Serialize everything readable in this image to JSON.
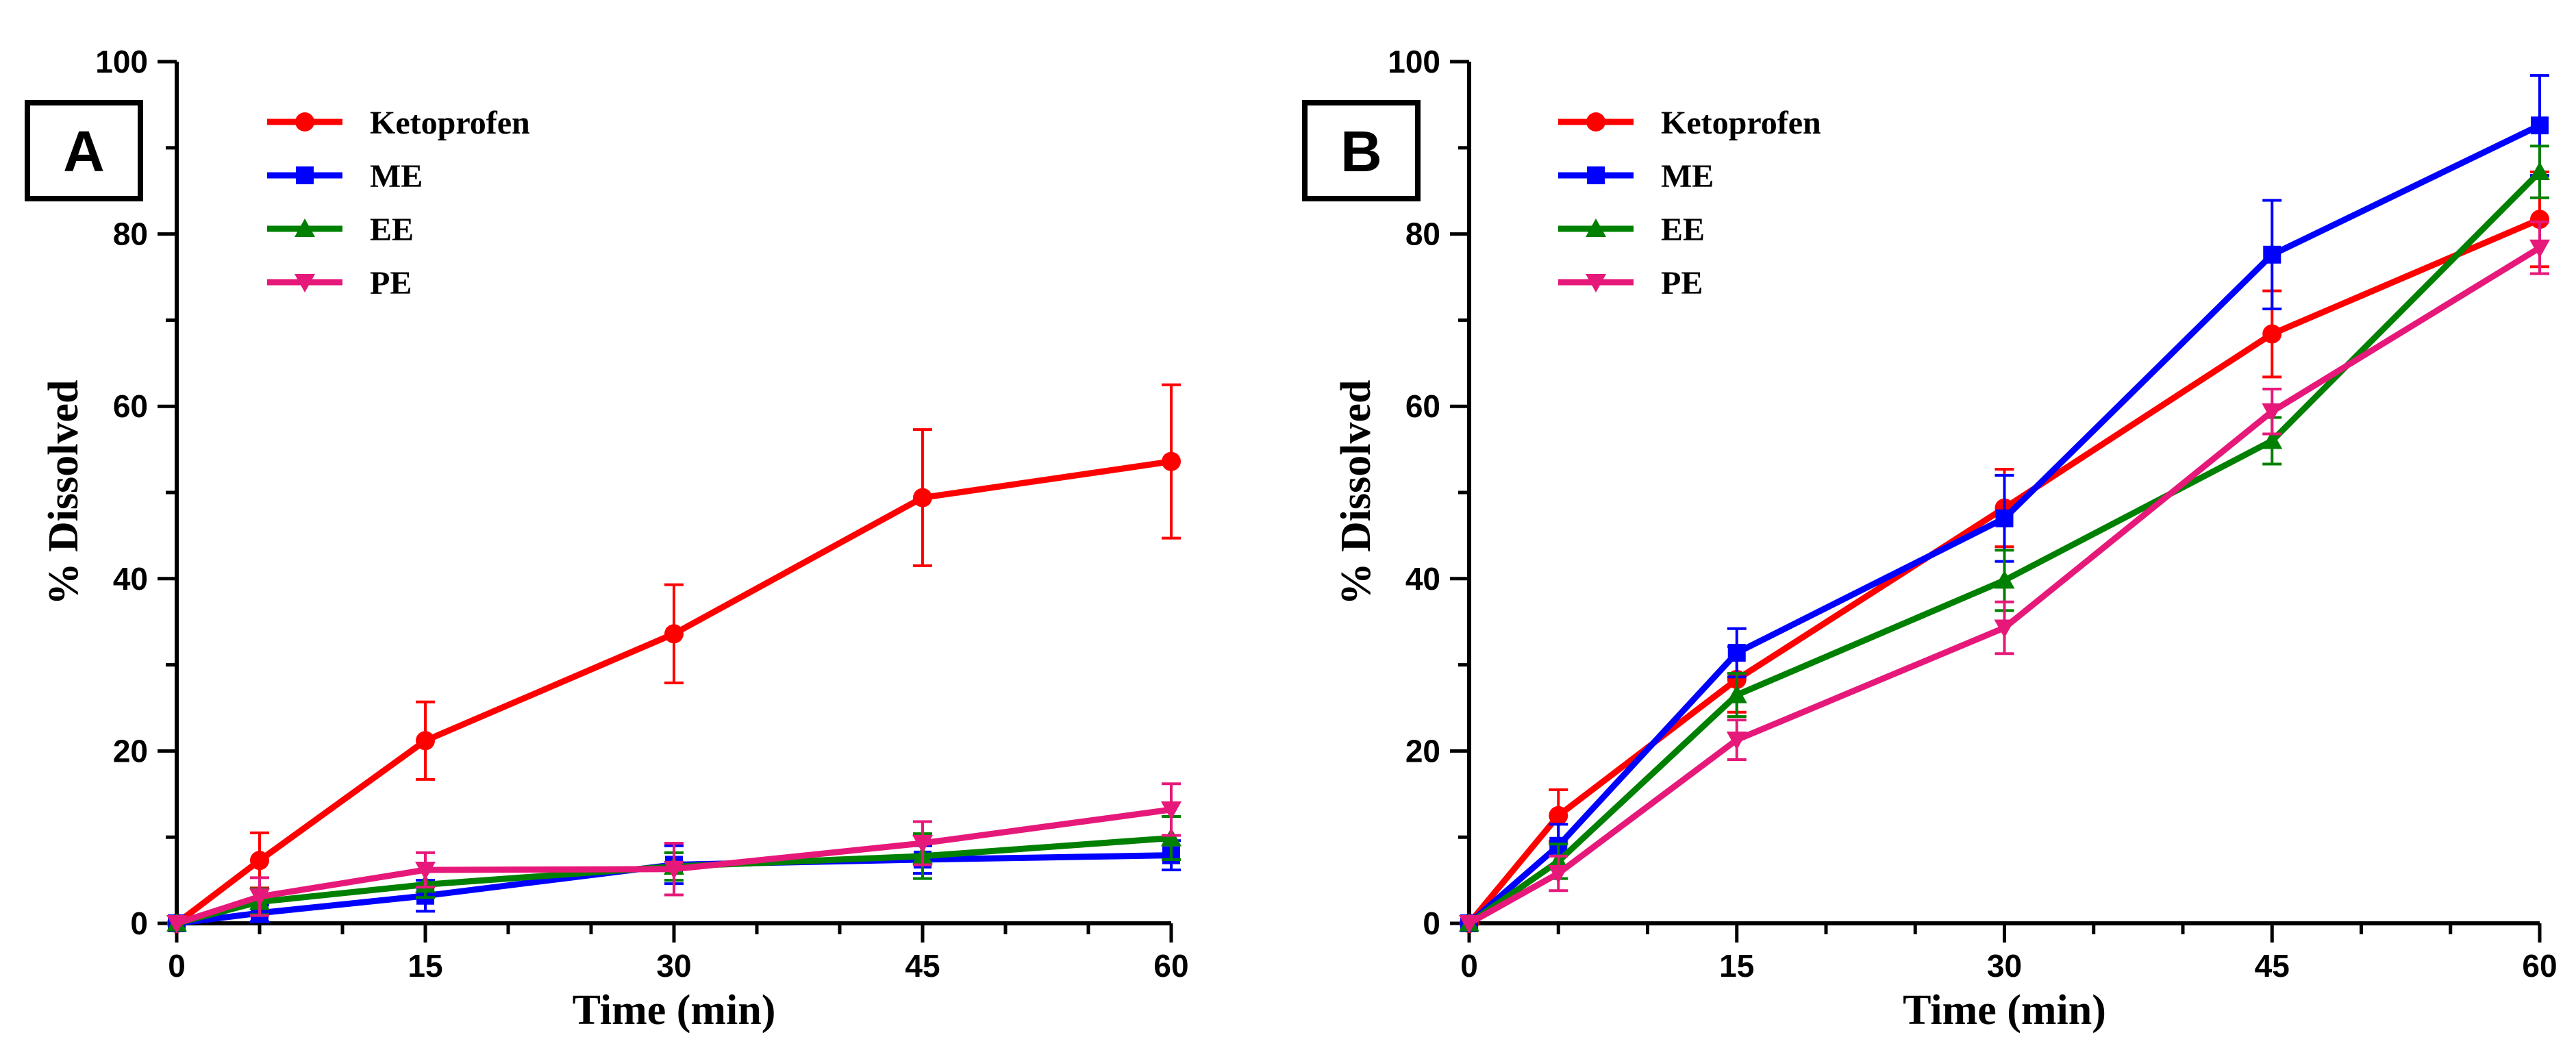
{
  "chart_data": [
    {
      "type": "line",
      "panel_label": "A",
      "xlabel": "Time (min)",
      "ylabel": "% Dissolved",
      "xlim": [
        0,
        60
      ],
      "ylim": [
        0,
        100
      ],
      "x_ticks": [
        0,
        15,
        30,
        45,
        60
      ],
      "y_ticks": [
        0,
        20,
        40,
        60,
        80,
        100
      ],
      "legend_position": "top-left",
      "grid": false,
      "x": [
        0,
        5,
        15,
        30,
        45,
        60
      ],
      "series": [
        {
          "name": "Ketoprofen",
          "color": "#ff0000",
          "marker": "circle",
          "values": [
            0,
            7.3,
            21.2,
            33.6,
            49.4,
            53.6
          ],
          "errors": [
            0,
            3.2,
            4.5,
            5.7,
            7.9,
            8.9
          ]
        },
        {
          "name": "ME",
          "color": "#0000ff",
          "marker": "square",
          "values": [
            0,
            1.2,
            3.2,
            6.8,
            7.4,
            7.9
          ],
          "errors": [
            0,
            1.0,
            1.8,
            2.2,
            1.6,
            1.7
          ]
        },
        {
          "name": "EE",
          "color": "#008000",
          "marker": "triangle-up",
          "values": [
            0,
            2.5,
            4.5,
            6.6,
            7.8,
            9.9
          ],
          "errors": [
            0,
            1.5,
            1.5,
            1.6,
            2.6,
            2.5
          ]
        },
        {
          "name": "PE",
          "color": "#e6197a",
          "marker": "triangle-down",
          "values": [
            0,
            3.1,
            6.2,
            6.3,
            9.3,
            13.2
          ],
          "errors": [
            0,
            2.2,
            2.0,
            3.0,
            2.5,
            3.0
          ]
        }
      ]
    },
    {
      "type": "line",
      "panel_label": "B",
      "xlabel": "Time (min)",
      "ylabel": "% Dissolved",
      "xlim": [
        0,
        60
      ],
      "ylim": [
        0,
        100
      ],
      "x_ticks": [
        0,
        15,
        30,
        45,
        60
      ],
      "y_ticks": [
        0,
        20,
        40,
        60,
        80,
        100
      ],
      "legend_position": "top-left",
      "grid": false,
      "x": [
        0,
        5,
        15,
        30,
        45,
        60
      ],
      "series": [
        {
          "name": "Ketoprofen",
          "color": "#ff0000",
          "marker": "circle",
          "values": [
            0,
            12.5,
            28.3,
            48.2,
            68.4,
            81.7
          ],
          "errors": [
            0,
            3.0,
            3.8,
            4.5,
            5.0,
            5.5
          ]
        },
        {
          "name": "ME",
          "color": "#0000ff",
          "marker": "square",
          "values": [
            0,
            9.0,
            31.4,
            47.0,
            77.6,
            92.6
          ],
          "errors": [
            0,
            2.5,
            2.8,
            5.0,
            6.3,
            5.8
          ]
        },
        {
          "name": "EE",
          "color": "#008000",
          "marker": "triangle-up",
          "values": [
            0,
            7.2,
            26.5,
            39.8,
            56.0,
            87.2
          ],
          "errors": [
            0,
            2.0,
            2.5,
            3.5,
            2.7,
            3.0
          ]
        },
        {
          "name": "PE",
          "color": "#e6197a",
          "marker": "triangle-down",
          "values": [
            0,
            5.8,
            21.3,
            34.3,
            59.4,
            78.4
          ],
          "errors": [
            0,
            2.0,
            2.3,
            3.0,
            2.6,
            3.0
          ]
        }
      ]
    }
  ]
}
